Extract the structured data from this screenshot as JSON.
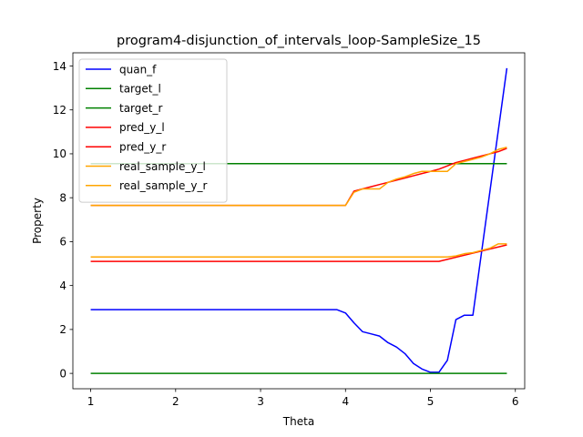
{
  "chart_data": {
    "type": "line",
    "title": "program4-disjunction_of_intervals_loop-SampleSize_15",
    "xlabel": "Theta",
    "ylabel": "Property",
    "xlim": [
      0.79,
      6.11
    ],
    "ylim": [
      -0.7,
      14.6
    ],
    "xticks": [
      "1",
      "2",
      "3",
      "4",
      "5",
      "6"
    ],
    "yticks": [
      "0",
      "2",
      "4",
      "6",
      "8",
      "10",
      "12",
      "14"
    ],
    "grid": false,
    "legend_position": "top-left",
    "series": [
      {
        "name": "quan_f",
        "color": "#0000ff",
        "x": [
          1.0,
          3.9,
          4.0,
          4.1,
          4.2,
          4.3,
          4.4,
          4.5,
          4.6,
          4.7,
          4.8,
          4.9,
          5.0,
          5.1,
          5.2,
          5.3,
          5.4,
          5.5,
          5.9
        ],
        "y": [
          2.9,
          2.9,
          2.75,
          2.3,
          1.9,
          1.8,
          1.7,
          1.4,
          1.2,
          0.9,
          0.45,
          0.2,
          0.05,
          0.05,
          0.6,
          2.45,
          2.65,
          2.65,
          13.9
        ]
      },
      {
        "name": "target_l",
        "color": "#008000",
        "x": [
          1.0,
          5.9
        ],
        "y": [
          9.55,
          9.55
        ]
      },
      {
        "name": "target_r",
        "color": "#008000",
        "x": [
          1.0,
          5.9
        ],
        "y": [
          0.0,
          0.0
        ]
      },
      {
        "name": "pred_y_l",
        "color": "#ff0000",
        "x": [
          1.0,
          4.0,
          4.1,
          4.2,
          4.3,
          4.4,
          4.5,
          4.6,
          4.7,
          4.8,
          4.9,
          5.0,
          5.1,
          5.2,
          5.3,
          5.4,
          5.5,
          5.6,
          5.7,
          5.8,
          5.9
        ],
        "y": [
          7.65,
          7.65,
          8.3,
          8.4,
          8.5,
          8.6,
          8.7,
          8.8,
          8.9,
          9.0,
          9.1,
          9.2,
          9.3,
          9.45,
          9.6,
          9.7,
          9.8,
          9.9,
          10.0,
          10.1,
          10.25
        ]
      },
      {
        "name": "pred_y_r",
        "color": "#ff0000",
        "x": [
          1.0,
          5.1,
          5.9
        ],
        "y": [
          5.1,
          5.1,
          5.85
        ]
      },
      {
        "name": "real_sample_y_l",
        "color": "#ffa500",
        "x": [
          1.0,
          4.0,
          4.1,
          4.2,
          4.3,
          4.4,
          4.5,
          4.6,
          4.7,
          4.8,
          4.9,
          5.0,
          5.1,
          5.2,
          5.3,
          5.4,
          5.5,
          5.6,
          5.7,
          5.8,
          5.9
        ],
        "y": [
          7.65,
          7.65,
          8.25,
          8.4,
          8.4,
          8.4,
          8.7,
          8.85,
          8.95,
          9.1,
          9.2,
          9.2,
          9.2,
          9.2,
          9.55,
          9.65,
          9.75,
          9.85,
          10.0,
          10.2,
          10.3
        ]
      },
      {
        "name": "real_sample_y_r",
        "color": "#ffa500",
        "x": [
          1.0,
          5.2,
          5.3,
          5.4,
          5.5,
          5.6,
          5.7,
          5.8,
          5.9
        ],
        "y": [
          5.3,
          5.3,
          5.35,
          5.45,
          5.5,
          5.6,
          5.7,
          5.9,
          5.9
        ]
      }
    ]
  }
}
